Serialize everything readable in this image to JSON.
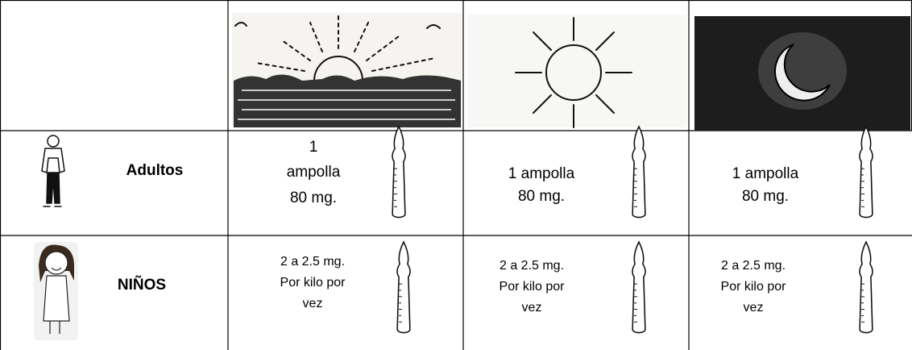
{
  "table": {
    "rows": [
      {
        "label": "Adultos",
        "doses": [
          [
            "1",
            "ampolla",
            "80 mg."
          ],
          [
            "1 ampolla",
            "80 mg."
          ],
          [
            "1 ampolla",
            "80 mg."
          ]
        ]
      },
      {
        "label": "NIÑOS",
        "doses": [
          [
            "2 a 2.5 mg.",
            "Por kilo por",
            "vez"
          ],
          [
            "2 a 2.5 mg.",
            "Por kilo por",
            "vez"
          ],
          [
            "2 a 2.5 mg.",
            "Por kilo por",
            "vez"
          ]
        ]
      }
    ]
  }
}
